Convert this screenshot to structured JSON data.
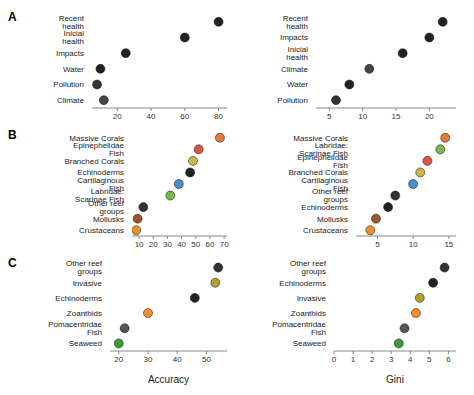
{
  "chart_data": [
    {
      "type": "scatter",
      "title": "A",
      "categories": [
        "Recent health",
        "Inicial health",
        "Impacts",
        "Water",
        "Pollution",
        "Climate"
      ],
      "values": [
        80,
        60,
        25,
        10,
        8,
        12
      ],
      "colors": [
        "#222222",
        "#222222",
        "#222222",
        "#222222",
        "#333333",
        "#444444"
      ],
      "xlim": [
        5,
        85
      ],
      "xticks": [
        20,
        40,
        60,
        80
      ]
    },
    {
      "type": "scatter",
      "categories": [
        "Recent health",
        "Impacts",
        "Inicial health",
        "Climate",
        "Water",
        "Pollution"
      ],
      "values": [
        22,
        20,
        16,
        11,
        8,
        6
      ],
      "colors": [
        "#222222",
        "#222222",
        "#222222",
        "#444444",
        "#222222",
        "#333333"
      ],
      "xlim": [
        3,
        24
      ],
      "xticks": [
        5,
        10,
        15,
        20
      ]
    },
    {
      "type": "scatter",
      "title": "B",
      "categories": [
        "Massive Corals",
        "Epinephelidae Fish",
        "Branched Corals",
        "Echinoderms",
        "Cartilaginous Fish",
        "Labridae: Scarinae Fish",
        "Other reef groups",
        "Mollusks",
        "Crustaceans"
      ],
      "values": [
        67,
        52,
        48,
        46,
        38,
        32,
        13,
        9,
        8
      ],
      "colors": [
        "#e07b39",
        "#d9534f",
        "#c8b84a",
        "#222222",
        "#4a90c2",
        "#7ab648",
        "#333333",
        "#a0522d",
        "#e8912d"
      ],
      "xlim": [
        5,
        72
      ],
      "xticks": [
        10,
        20,
        30,
        40,
        50,
        60,
        70
      ]
    },
    {
      "type": "scatter",
      "categories": [
        "Massive Corals",
        "Labridae: Scarinae Fish",
        "Epinephelidae Fish",
        "Branched Corals",
        "Cartilaginous Fish",
        "Other reef groups",
        "Echinoderms",
        "Mollusks",
        "Crustaceans"
      ],
      "values": [
        14.5,
        13.8,
        12,
        11,
        10,
        7.5,
        6.5,
        4.8,
        4
      ],
      "colors": [
        "#e07b39",
        "#7ab648",
        "#d9534f",
        "#c8b84a",
        "#4a90c2",
        "#333333",
        "#222222",
        "#a0522d",
        "#e8912d"
      ],
      "xlim": [
        2,
        16
      ],
      "xticks": [
        5,
        10,
        15
      ]
    },
    {
      "type": "scatter",
      "title": "C",
      "categories": [
        "Other reef groups",
        "Invasive",
        "Echinoderms",
        "Zoanthids",
        "Pomacentridae Fish",
        "Seaweed"
      ],
      "values": [
        54,
        53,
        46,
        30,
        22,
        20
      ],
      "colors": [
        "#333333",
        "#b0a030",
        "#222222",
        "#e8912d",
        "#555555",
        "#3a9a3a"
      ],
      "xlim": [
        17,
        57
      ],
      "xticks": [
        20,
        30,
        40,
        50
      ],
      "x_label": "Accuracy"
    },
    {
      "type": "scatter",
      "categories": [
        "Other reef groups",
        "Echinoderms",
        "Invasive",
        "Zoanthids",
        "Pomacentridae Fish",
        "Seaweed"
      ],
      "values": [
        5.8,
        5.2,
        4.5,
        4.3,
        3.7,
        3.4
      ],
      "colors": [
        "#333333",
        "#222222",
        "#b0a030",
        "#e8912d",
        "#555555",
        "#3a9a3a"
      ],
      "xlim": [
        0,
        6.4
      ],
      "xticks": [
        0,
        1,
        2,
        3,
        4,
        5,
        6
      ],
      "x_label": "Gini"
    }
  ]
}
